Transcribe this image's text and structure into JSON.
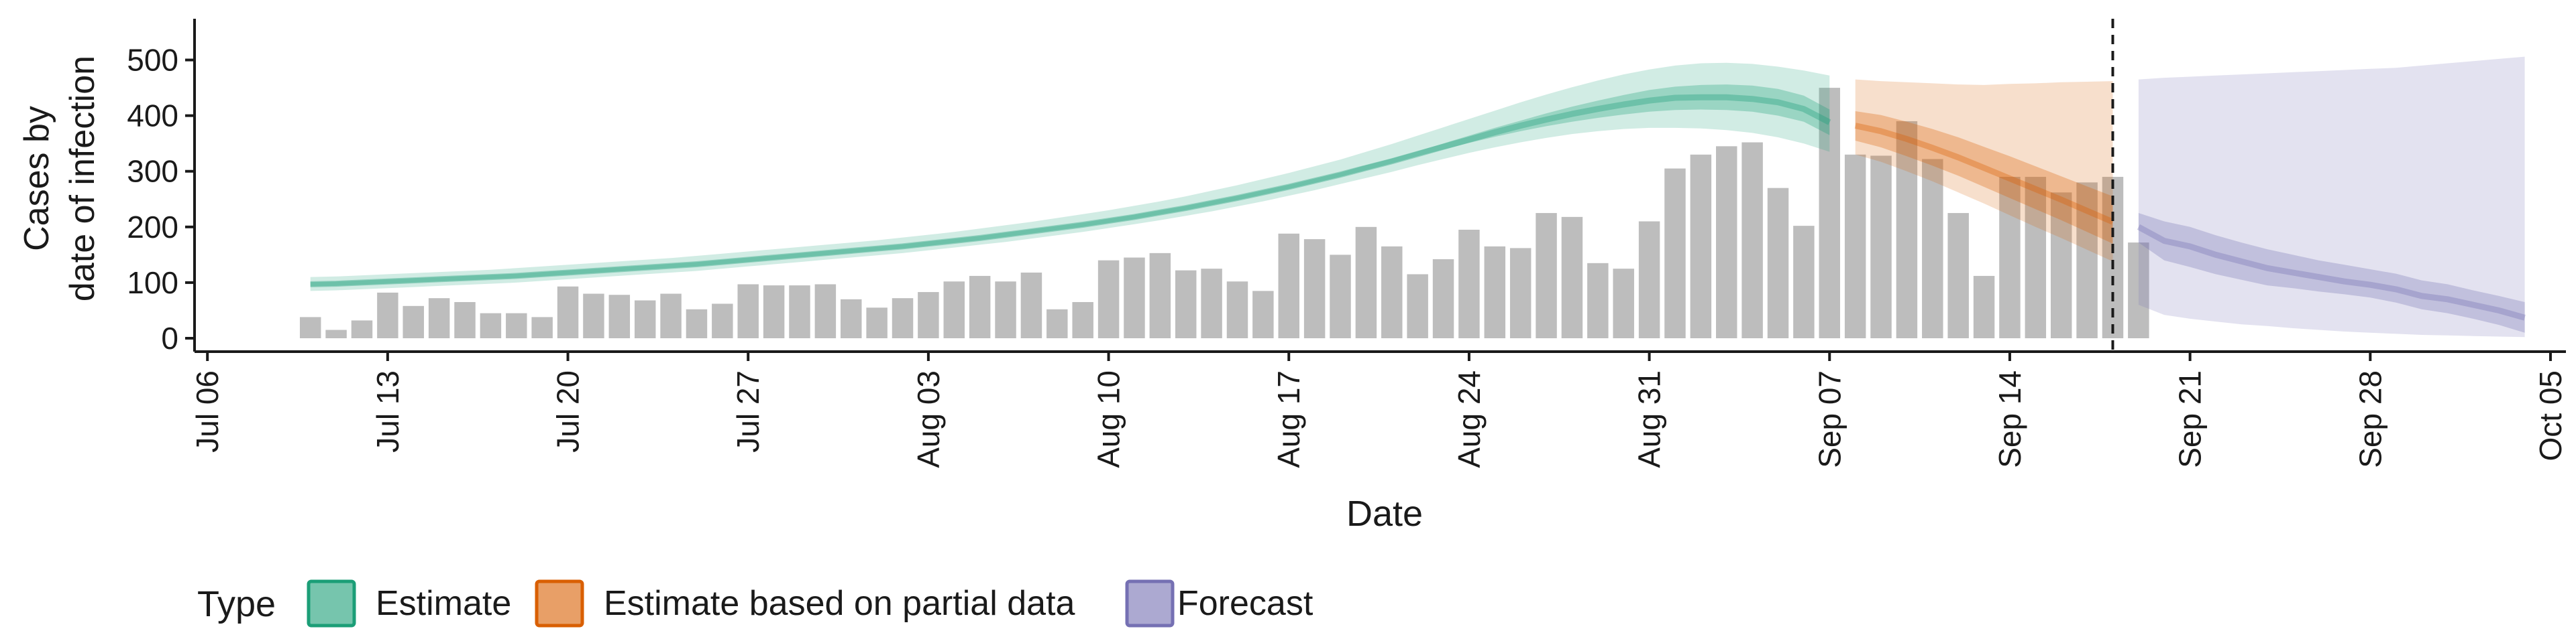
{
  "chart_data": {
    "type": "bar",
    "xlabel": "Date",
    "ylabel": [
      "Cases by",
      "date of infection"
    ],
    "ylim": [
      0,
      550
    ],
    "yticks": [
      0,
      100,
      200,
      300,
      400,
      500
    ],
    "xrange": [
      "2020-07-06",
      "2020-10-05"
    ],
    "xticks": [
      {
        "date": "2020-07-06",
        "label": "Jul 06"
      },
      {
        "date": "2020-07-13",
        "label": "Jul 13"
      },
      {
        "date": "2020-07-20",
        "label": "Jul 20"
      },
      {
        "date": "2020-07-27",
        "label": "Jul 27"
      },
      {
        "date": "2020-08-03",
        "label": "Aug 03"
      },
      {
        "date": "2020-08-10",
        "label": "Aug 10"
      },
      {
        "date": "2020-08-17",
        "label": "Aug 17"
      },
      {
        "date": "2020-08-24",
        "label": "Aug 24"
      },
      {
        "date": "2020-08-31",
        "label": "Aug 31"
      },
      {
        "date": "2020-09-07",
        "label": "Sep 07"
      },
      {
        "date": "2020-09-14",
        "label": "Sep 14"
      },
      {
        "date": "2020-09-21",
        "label": "Sep 21"
      },
      {
        "date": "2020-09-28",
        "label": "Sep 28"
      },
      {
        "date": "2020-10-05",
        "label": "Oct 05"
      }
    ],
    "bars_start": "2020-07-10",
    "bars": [
      38,
      15,
      32,
      82,
      58,
      72,
      65,
      45,
      45,
      38,
      93,
      80,
      78,
      68,
      80,
      52,
      62,
      97,
      95,
      95,
      97,
      70,
      55,
      72,
      83,
      102,
      112,
      102,
      118,
      52,
      65,
      140,
      145,
      153,
      122,
      125,
      102,
      85,
      188,
      178,
      150,
      200,
      165,
      115,
      142,
      195,
      165,
      162,
      225,
      218,
      135,
      125,
      210,
      305,
      330,
      345,
      352,
      270,
      202,
      450,
      330,
      328,
      390,
      322,
      225,
      112,
      290,
      290,
      262,
      280,
      290,
      172
    ],
    "date_line": "2020-09-18",
    "legend": {
      "title": "Type",
      "position": "bottom",
      "items": [
        {
          "label": "Estimate",
          "color": "#1b9e77"
        },
        {
          "label": "Estimate based on partial data",
          "color": "#d95f02"
        },
        {
          "label": "Forecast",
          "color": "#7570b3"
        }
      ]
    },
    "series": [
      {
        "name": "Estimate",
        "color": "#1b9e77",
        "start": "2020-07-10",
        "median": [
          97,
          98,
          100,
          102,
          104,
          106,
          108,
          110,
          112,
          115,
          118,
          121,
          124,
          127,
          130,
          133,
          137,
          141,
          145,
          149,
          153,
          157,
          161,
          165,
          170,
          175,
          180,
          186,
          192,
          198,
          204,
          211,
          218,
          226,
          234,
          243,
          252,
          262,
          272,
          283,
          294,
          306,
          318,
          331,
          344,
          357,
          370,
          382,
          393,
          403,
          412,
          420,
          427,
          432,
          433,
          433,
          430,
          424,
          412,
          388
        ],
        "inner": [
          [
            93,
            94,
            96,
            98,
            100,
            102,
            104,
            106,
            108,
            111,
            114,
            117,
            120,
            123,
            126,
            129,
            133,
            137,
            141,
            145,
            149,
            153,
            157,
            161,
            166,
            171,
            176,
            182,
            188,
            194,
            200,
            207,
            214,
            222,
            230,
            239,
            248,
            258,
            268,
            279,
            290,
            302,
            314,
            327,
            339,
            351,
            362,
            372,
            381,
            389,
            396,
            402,
            407,
            410,
            411,
            410,
            407,
            400,
            389,
            365
          ],
          [
            101,
            102,
            104,
            106,
            108,
            110,
            112,
            114,
            116,
            119,
            122,
            125,
            128,
            131,
            134,
            137,
            141,
            145,
            149,
            153,
            157,
            161,
            165,
            169,
            174,
            179,
            184,
            190,
            196,
            202,
            208,
            215,
            222,
            230,
            238,
            247,
            256,
            266,
            276,
            287,
            298,
            311,
            323,
            336,
            350,
            364,
            378,
            391,
            404,
            416,
            427,
            437,
            446,
            452,
            455,
            456,
            454,
            448,
            436,
            411
          ]
        ],
        "outer": [
          [
            85,
            86,
            88,
            90,
            92,
            94,
            96,
            98,
            100,
            103,
            106,
            109,
            112,
            115,
            118,
            121,
            125,
            129,
            133,
            137,
            141,
            145,
            149,
            153,
            158,
            163,
            168,
            173,
            179,
            185,
            191,
            198,
            205,
            212,
            220,
            228,
            237,
            246,
            256,
            266,
            277,
            288,
            299,
            311,
            322,
            333,
            343,
            352,
            360,
            367,
            372,
            376,
            378,
            378,
            377,
            374,
            369,
            361,
            350,
            335
          ],
          [
            110,
            111,
            113,
            115,
            117,
            119,
            121,
            123,
            126,
            129,
            132,
            135,
            138,
            141,
            144,
            148,
            152,
            156,
            160,
            164,
            168,
            172,
            176,
            181,
            186,
            191,
            197,
            203,
            209,
            216,
            223,
            230,
            238,
            246,
            255,
            265,
            275,
            286,
            297,
            309,
            321,
            335,
            349,
            364,
            379,
            394,
            409,
            424,
            438,
            451,
            463,
            474,
            483,
            490,
            494,
            495,
            493,
            488,
            481,
            472
          ]
        ]
      },
      {
        "name": "Estimate based on partial data",
        "color": "#d95f02",
        "start": "2020-09-08",
        "median": [
          382,
          372,
          358,
          342,
          325,
          306,
          287,
          268,
          249,
          229,
          209
        ],
        "inner": [
          [
            355,
            343,
            327,
            310,
            292,
            272,
            252,
            232,
            212,
            191,
            170
          ],
          [
            408,
            401,
            389,
            376,
            361,
            344,
            327,
            309,
            291,
            273,
            255
          ]
        ],
        "outer": [
          [
            330,
            317,
            300,
            282,
            262,
            242,
            221,
            200,
            180,
            159,
            138
          ],
          [
            465,
            462,
            460,
            458,
            456,
            455,
            457,
            458,
            460,
            461,
            462
          ]
        ]
      },
      {
        "name": "Forecast",
        "color": "#7570b3",
        "start": "2020-09-19",
        "median": [
          200,
          175,
          165,
          150,
          138,
          126,
          118,
          110,
          102,
          96,
          88,
          76,
          70,
          60,
          50,
          37
        ],
        "inner": [
          [
            172,
            140,
            128,
            115,
            105,
            95,
            90,
            84,
            79,
            73,
            64,
            52,
            45,
            35,
            24,
            10
          ],
          [
            225,
            210,
            200,
            185,
            172,
            160,
            150,
            140,
            132,
            124,
            116,
            104,
            97,
            86,
            76,
            65
          ]
        ],
        "outer": [
          [
            60,
            42,
            35,
            30,
            25,
            22,
            18,
            15,
            12,
            10,
            8,
            6,
            5,
            4,
            3,
            2
          ],
          [
            465,
            468,
            470,
            472,
            474,
            476,
            478,
            480,
            482,
            484,
            486,
            490,
            494,
            498,
            502,
            506
          ]
        ]
      }
    ]
  }
}
